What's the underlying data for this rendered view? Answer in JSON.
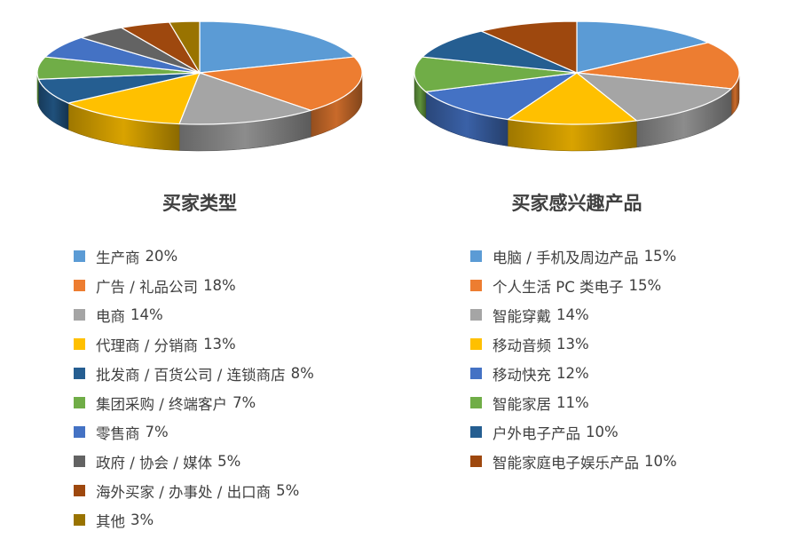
{
  "chart_data": [
    {
      "type": "pie",
      "title": "买家类型",
      "categories": [
        "生产商",
        "广告 / 礼品公司",
        "电商",
        "代理商 / 分销商",
        "批发商 / 百货公司 / 连锁商店",
        "集团采购 / 终端客户",
        "零售商",
        "政府 / 协会 / 媒体",
        "海外买家 / 办事处 / 出口商",
        "其他"
      ],
      "values": [
        20,
        18,
        14,
        13,
        8,
        7,
        7,
        5,
        5,
        3
      ],
      "value_labels": [
        "20%",
        "18%",
        "14%",
        "13%",
        "8%",
        "7%",
        "7%",
        "5%",
        "5%",
        "3%"
      ],
      "colors": [
        "#5b9bd5",
        "#ed7d31",
        "#a5a5a5",
        "#ffc000",
        "#255e91",
        "#70ad47",
        "#4472c4",
        "#636363",
        "#9e480e",
        "#997300"
      ],
      "style": "3d",
      "legend": "bottom"
    },
    {
      "type": "pie",
      "title": "买家感兴趣产品",
      "categories": [
        "电脑 / 手机及周边产品",
        "个人生活 PC 类电子",
        "智能穿戴",
        "移动音频",
        "移动快充",
        "智能家居",
        "户外电子产品",
        "智能家庭电子娱乐产品"
      ],
      "values": [
        15,
        15,
        14,
        13,
        12,
        11,
        10,
        10
      ],
      "value_labels": [
        "15%",
        "15%",
        "14%",
        "13%",
        "12%",
        "11%",
        "10%",
        "10%"
      ],
      "colors": [
        "#5b9bd5",
        "#ed7d31",
        "#a5a5a5",
        "#ffc000",
        "#4472c4",
        "#70ad47",
        "#255e91",
        "#9e480e"
      ],
      "style": "3d",
      "legend": "bottom"
    }
  ]
}
